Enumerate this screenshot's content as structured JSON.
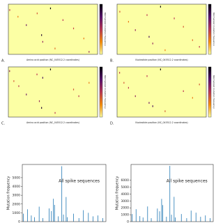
{
  "chart_data": [
    {
      "type": "heatmap",
      "panel": "A.",
      "xlabel": "Amino acid position (NC_045512.2 coordinates)",
      "colorbar_label": "Normalized mutation frequency",
      "cmap": [
        "#fcffa4",
        "#f98e09",
        "#bc3754",
        "#57106e",
        "#000004"
      ],
      "clim": [
        0,
        1
      ],
      "xlim": [
        0,
        1300
      ],
      "ylim": [
        0,
        30
      ],
      "cells": {
        "x": [
          20,
          140,
          262,
          420,
          484,
          501,
          614,
          680,
          796,
          950,
          1100,
          1176
        ],
        "row": [
          3,
          7,
          12,
          5,
          18,
          22,
          2,
          26,
          9,
          14,
          20,
          28
        ],
        "values": [
          0.5,
          0.3,
          0.7,
          0.4,
          0.9,
          0.6,
          1,
          0.35,
          0.5,
          0.45,
          0.3,
          0.6
        ]
      }
    },
    {
      "type": "heatmap",
      "panel": "B.",
      "xlabel": "Nucleotide position (NC_045512.2 coordinates)",
      "colorbar_label": "Normalized mutation frequency",
      "cmap": [
        "#fcffa4",
        "#f98e09",
        "#bc3754",
        "#57106e",
        "#000004"
      ],
      "clim": [
        0,
        1
      ],
      "xlim": [
        21500,
        25400
      ],
      "ylim": [
        0,
        30
      ],
      "cells": {
        "x": [
          21620,
          22000,
          22300,
          22810,
          22900,
          23060,
          23400,
          23600,
          24000,
          24400,
          24800,
          25100
        ],
        "row": [
          4,
          10,
          15,
          6,
          19,
          23,
          1,
          27,
          8,
          13,
          21,
          25
        ],
        "values": [
          0.4,
          0.3,
          0.6,
          0.5,
          0.8,
          0.6,
          1,
          0.3,
          0.5,
          0.4,
          0.35,
          0.5
        ]
      }
    },
    {
      "type": "heatmap",
      "panel": "C.",
      "xlabel": "Amino acid position (NC_045512.2 coordinates)",
      "colorbar_label": "Normalized mutation frequency",
      "cmap": [
        "#fcffa4",
        "#f98e09",
        "#bc3754",
        "#57106e",
        "#000004"
      ],
      "clim": [
        0,
        1
      ],
      "xlim": [
        0,
        1300
      ],
      "ylim": [
        0,
        30
      ],
      "cells": {
        "x": [
          18,
          80,
          152,
          262,
          417,
          452,
          484,
          501,
          614,
          681,
          950,
          1027,
          1176
        ],
        "row": [
          2,
          8,
          11,
          16,
          4,
          20,
          24,
          6,
          1,
          27,
          13,
          17,
          9
        ],
        "values": [
          0.6,
          0.4,
          0.5,
          0.7,
          0.5,
          0.6,
          0.9,
          0.8,
          1,
          0.5,
          0.4,
          0.5,
          0.3
        ]
      }
    },
    {
      "type": "heatmap",
      "panel": "D.",
      "xlabel": "Nucleotide position (NC_045512.2 coordinates)",
      "colorbar_label": "Normalized mutation frequency",
      "cmap": [
        "#fcffa4",
        "#f98e09",
        "#bc3754",
        "#57106e",
        "#000004"
      ],
      "clim": [
        0,
        1
      ],
      "xlim": [
        21500,
        25400
      ],
      "ylim": [
        0,
        30
      ],
      "cells": {
        "x": [
          21610,
          21800,
          22000,
          22300,
          22810,
          22900,
          23060,
          23400,
          23600,
          24400,
          24800,
          25100
        ],
        "row": [
          3,
          9,
          12,
          17,
          5,
          21,
          23,
          1,
          26,
          14,
          18,
          10
        ],
        "values": [
          0.5,
          0.4,
          0.5,
          0.6,
          0.5,
          0.7,
          0.8,
          1,
          0.4,
          0.5,
          0.3,
          0.4
        ]
      }
    },
    {
      "type": "bar",
      "label": "All spike sequences",
      "ylabel": "Mutation frequency",
      "color": "#1f77b4",
      "xlim": [
        0,
        1300
      ],
      "ylim": [
        0,
        6500
      ],
      "yticks": [
        0,
        1000,
        2000,
        3000,
        4000,
        5000
      ],
      "x": [
        18,
        80,
        140,
        190,
        262,
        320,
        417,
        452,
        484,
        501,
        560,
        614,
        640,
        681,
        700,
        796,
        880,
        950,
        1027,
        1100,
        1176,
        1250
      ],
      "values": [
        900,
        1400,
        700,
        500,
        1700,
        400,
        1500,
        1200,
        2600,
        1900,
        600,
        6300,
        800,
        2800,
        500,
        900,
        400,
        1300,
        1000,
        600,
        700,
        400
      ]
    },
    {
      "type": "bar",
      "label": "All spike sequences",
      "ylabel": "Mutation frequency",
      "color": "#1f77b4",
      "xlim": [
        0,
        1300
      ],
      "ylim": [
        0,
        8300
      ],
      "yticks": [
        0,
        1000,
        2000,
        3000,
        4000,
        5000,
        6000
      ],
      "x": [
        18,
        80,
        140,
        190,
        262,
        320,
        417,
        452,
        484,
        501,
        560,
        614,
        640,
        681,
        700,
        796,
        880,
        950,
        1027,
        1100,
        1176,
        1250
      ],
      "values": [
        1100,
        1800,
        800,
        600,
        2200,
        500,
        1900,
        1500,
        3300,
        2400,
        700,
        8100,
        1000,
        3600,
        600,
        1100,
        500,
        1600,
        1300,
        700,
        900,
        500
      ]
    }
  ]
}
